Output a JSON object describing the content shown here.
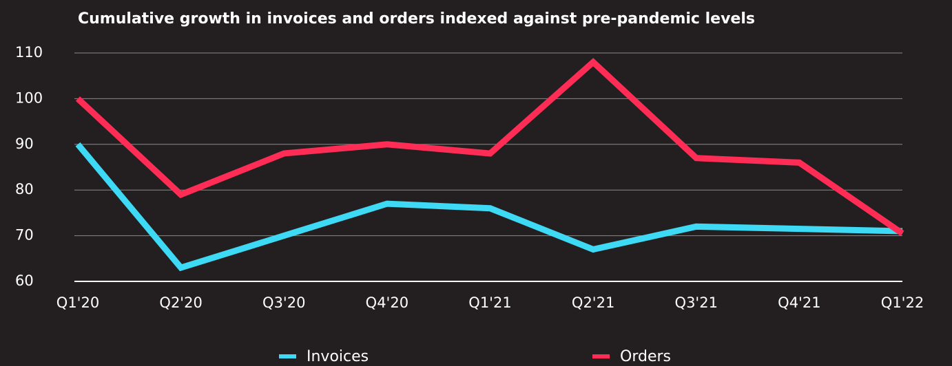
{
  "chart_data": {
    "type": "line",
    "title": "Cumulative growth in invoices and orders indexed against pre-pandemic levels",
    "categories": [
      "Q1'20",
      "Q2'20",
      "Q3'20",
      "Q4'20",
      "Q1'21",
      "Q2'21",
      "Q3'21",
      "Q4'21",
      "Q1'22"
    ],
    "series": [
      {
        "name": "Invoices",
        "color": "#3dd9f5",
        "values": [
          90,
          63,
          70,
          77,
          76,
          67,
          72,
          71.5,
          71
        ]
      },
      {
        "name": "Orders",
        "color": "#ff2d55",
        "values": [
          100,
          79,
          88,
          90,
          88,
          108,
          87,
          86,
          70.5
        ]
      }
    ],
    "ylim": [
      60,
      110
    ],
    "yticks": [
      60,
      70,
      80,
      90,
      100,
      110
    ],
    "grid": true,
    "legend": "bottom"
  }
}
